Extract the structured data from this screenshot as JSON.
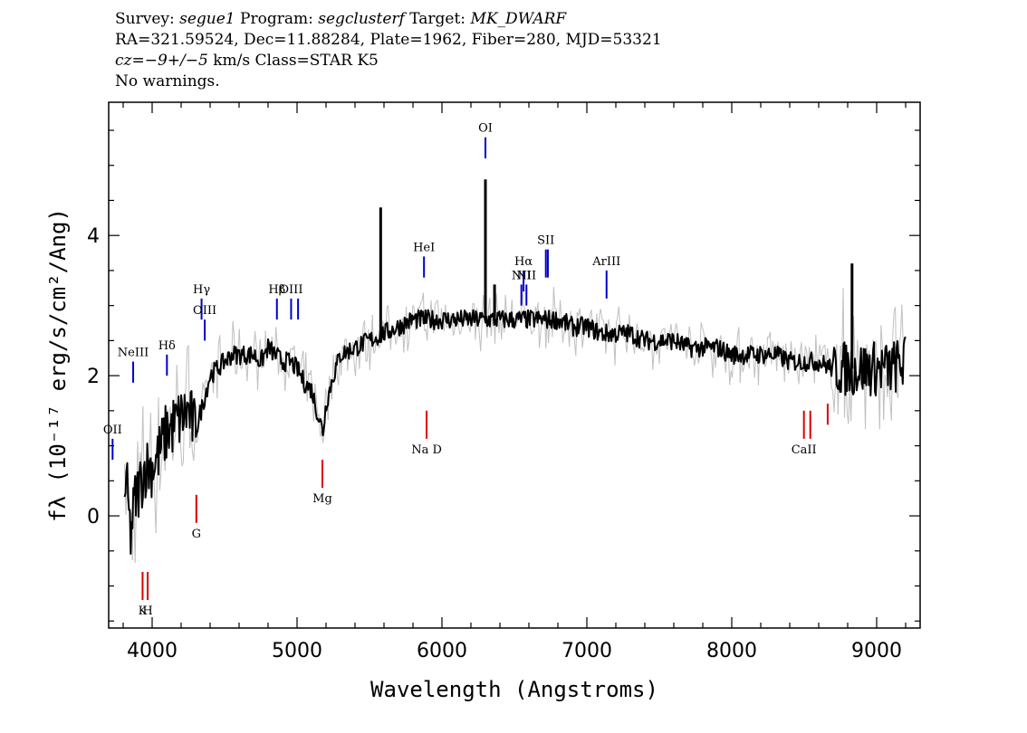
{
  "header": {
    "line1": {
      "survey_label": "Survey:",
      "survey": "segue1",
      "program_label": "Program:",
      "program": "segclusterf",
      "target_label": "Target:",
      "target": "MK_DWARF"
    },
    "line2": "RA=321.59524, Dec=11.88284, Plate=1962, Fiber=280, MJD=53321",
    "line3": {
      "cz": "cz=−9+/−5",
      "rest": "km/s Class=STAR K5"
    },
    "line4": "No warnings."
  },
  "chart_data": {
    "type": "line",
    "xlabel": "Wavelength (Angstroms)",
    "ylabel": "fλ (10⁻¹⁷ erg/s/cm²/Ang)",
    "xlim": [
      3700,
      9300
    ],
    "ylim": [
      -1.6,
      5.9
    ],
    "x_ticks": [
      4000,
      5000,
      6000,
      7000,
      8000,
      9000
    ],
    "y_ticks": [
      0,
      2,
      4
    ],
    "grid": false,
    "colors": {
      "flux": "#000000",
      "error": "#c0c0c0",
      "emission": "#0000cc",
      "absorption": "#dd0000"
    },
    "series": [
      {
        "role": "flux",
        "x": [
          3800,
          3830,
          3850,
          3880,
          3910,
          3950,
          4000,
          4050,
          4100,
          4150,
          4200,
          4250,
          4300,
          4350,
          4400,
          4450,
          4500,
          4550,
          4600,
          4650,
          4700,
          4750,
          4800,
          4850,
          4900,
          4950,
          5000,
          5050,
          5100,
          5150,
          5180,
          5200,
          5250,
          5300,
          5400,
          5500,
          5600,
          5700,
          5800,
          5900,
          6000,
          6100,
          6200,
          6300,
          6400,
          6500,
          6600,
          6700,
          6800,
          6900,
          7000,
          7100,
          7200,
          7300,
          7400,
          7500,
          7600,
          7700,
          7800,
          7900,
          8000,
          8100,
          8200,
          8300,
          8400,
          8500,
          8600,
          8700,
          8800,
          8900,
          9000,
          9100,
          9200
        ],
        "y": [
          0.5,
          0.3,
          -0.3,
          0.2,
          0.4,
          0.7,
          0.7,
          0.9,
          1.2,
          1.3,
          1.4,
          1.5,
          1.2,
          1.6,
          2.0,
          2.1,
          2.2,
          2.3,
          2.3,
          2.3,
          2.3,
          2.2,
          2.4,
          2.3,
          2.2,
          2.2,
          2.1,
          1.9,
          1.8,
          1.4,
          1.2,
          1.6,
          2.0,
          2.3,
          2.4,
          2.5,
          2.6,
          2.7,
          2.8,
          2.8,
          2.8,
          2.8,
          2.8,
          2.8,
          2.8,
          2.8,
          2.8,
          2.8,
          2.8,
          2.7,
          2.7,
          2.6,
          2.6,
          2.6,
          2.5,
          2.5,
          2.5,
          2.4,
          2.4,
          2.4,
          2.3,
          2.3,
          2.3,
          2.3,
          2.2,
          2.2,
          2.2,
          2.1,
          2.1,
          2.1,
          2.1,
          2.1,
          2.2
        ]
      }
    ],
    "spikes": [
      {
        "x": 5577,
        "y": 4.4
      },
      {
        "x": 6300,
        "y": 4.8
      },
      {
        "x": 6363,
        "y": 3.3
      },
      {
        "x": 8830,
        "y": 3.6
      }
    ],
    "emission_lines": [
      {
        "label": "OII",
        "x": 3727,
        "y_top": 1.1,
        "y_bot": 0.8
      },
      {
        "label": "NeIII",
        "x": 3869,
        "y_top": 2.2,
        "y_bot": 1.9
      },
      {
        "label": "Hδ",
        "x": 4102,
        "y_top": 2.3,
        "y_bot": 2.0
      },
      {
        "label": "Hγ",
        "x": 4341,
        "y_top": 3.1,
        "y_bot": 2.8
      },
      {
        "label": "OIII",
        "x": 4363,
        "y_top": 2.8,
        "y_bot": 2.5
      },
      {
        "label": "Hβ",
        "x": 4861,
        "y_top": 3.1,
        "y_bot": 2.8
      },
      {
        "label": "OIII",
        "x": 4959,
        "y_top": 3.1,
        "y_bot": 2.8
      },
      {
        "label": "",
        "x": 5007,
        "y_top": 3.1,
        "y_bot": 2.8
      },
      {
        "label": "HeI",
        "x": 5876,
        "y_top": 3.7,
        "y_bot": 3.4
      },
      {
        "label": "OI",
        "x": 6300,
        "y_top": 5.4,
        "y_bot": 5.1
      },
      {
        "label": "NII",
        "x": 6548,
        "y_top": 3.3,
        "y_bot": 3.0
      },
      {
        "label": "Hα",
        "x": 6563,
        "y_top": 3.5,
        "y_bot": 3.2
      },
      {
        "label": "NII",
        "x": 6583,
        "y_top": 3.3,
        "y_bot": 3.0
      },
      {
        "label": "SII",
        "x": 6717,
        "y_top": 3.8,
        "y_bot": 3.4
      },
      {
        "label": "",
        "x": 6731,
        "y_top": 3.8,
        "y_bot": 3.4
      },
      {
        "label": "ArIII",
        "x": 7136,
        "y_top": 3.5,
        "y_bot": 3.1
      }
    ],
    "absorption_lines": [
      {
        "label": "K",
        "x": 3934,
        "y_top": -0.8,
        "y_bot": -1.2
      },
      {
        "label": "H",
        "x": 3969,
        "y_top": -0.8,
        "y_bot": -1.2
      },
      {
        "label": "G",
        "x": 4305,
        "y_top": 0.3,
        "y_bot": -0.1
      },
      {
        "label": "Mg",
        "x": 5175,
        "y_top": 0.8,
        "y_bot": 0.4
      },
      {
        "label": "Na D",
        "x": 5894,
        "y_top": 1.5,
        "y_bot": 1.1
      },
      {
        "label": "CaII",
        "x": 8498,
        "y_top": 1.5,
        "y_bot": 1.1
      },
      {
        "label": "",
        "x": 8542,
        "y_top": 1.5,
        "y_bot": 1.1
      },
      {
        "label": "",
        "x": 8662,
        "y_top": 1.6,
        "y_bot": 1.3
      }
    ]
  }
}
